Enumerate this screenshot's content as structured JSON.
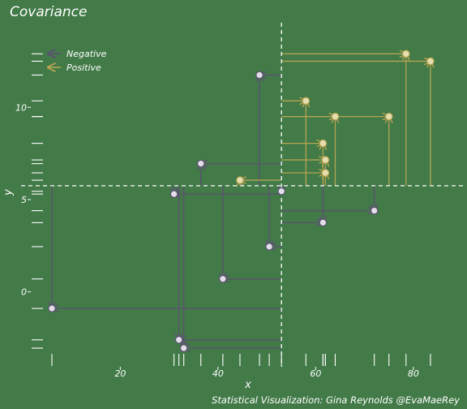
{
  "chart_data": {
    "type": "scatter",
    "title": "Covariance",
    "xlabel": "x",
    "ylabel": "y",
    "caption": "Statistical Visualization: Gina Reynolds @EvaMaeRey",
    "x_ticks": [
      {
        "value": 20,
        "label": "20"
      },
      {
        "value": 40,
        "label": "40"
      },
      {
        "value": 60,
        "label": "60"
      },
      {
        "value": 80,
        "label": "80"
      }
    ],
    "y_ticks": [
      {
        "value": 0,
        "label": "0"
      },
      {
        "value": 5,
        "label": "5"
      },
      {
        "value": 10,
        "label": "10"
      }
    ],
    "xlim": [
      6.0,
      86.0
    ],
    "ylim": [
      -3.05,
      13.75
    ],
    "mean_x": 53.0,
    "mean_y": 5.75,
    "grid": false,
    "legend_position": "top-left",
    "legend": [
      {
        "label": "Negative",
        "color": "#5e4f73"
      },
      {
        "label": "Positive",
        "color": "#b7a552"
      }
    ],
    "colors": {
      "background": "#427a48",
      "negative": "#5e4f73",
      "positive": "#b7a552",
      "mean_line": "#ffffff",
      "rug": "#ffffff"
    },
    "points": [
      {
        "x": 6.0,
        "y": -0.9,
        "sign": "Negative"
      },
      {
        "x": 31.0,
        "y": 5.3,
        "sign": "Negative"
      },
      {
        "x": 32.0,
        "y": -2.6,
        "sign": "Negative"
      },
      {
        "x": 33.0,
        "y": -3.05,
        "sign": "Negative"
      },
      {
        "x": 41.0,
        "y": 0.7,
        "sign": "Negative"
      },
      {
        "x": 50.5,
        "y": 2.45,
        "sign": "Negative"
      },
      {
        "x": 53.0,
        "y": 5.45,
        "sign": "Negative"
      },
      {
        "x": 61.5,
        "y": 3.75,
        "sign": "Negative"
      },
      {
        "x": 72.0,
        "y": 4.4,
        "sign": "Negative"
      },
      {
        "x": 36.5,
        "y": 6.95,
        "sign": "Negative"
      },
      {
        "x": 48.5,
        "y": 11.75,
        "sign": "Negative"
      },
      {
        "x": 44.5,
        "y": 6.05,
        "sign": "Positive"
      },
      {
        "x": 58.0,
        "y": 10.35,
        "sign": "Positive"
      },
      {
        "x": 61.5,
        "y": 8.05,
        "sign": "Positive"
      },
      {
        "x": 62.0,
        "y": 7.15,
        "sign": "Positive"
      },
      {
        "x": 62.0,
        "y": 6.45,
        "sign": "Positive"
      },
      {
        "x": 64.0,
        "y": 9.5,
        "sign": "Positive"
      },
      {
        "x": 75.0,
        "y": 9.5,
        "sign": "Positive"
      },
      {
        "x": 78.5,
        "y": 12.9,
        "sign": "Positive"
      },
      {
        "x": 83.5,
        "y": 12.5,
        "sign": "Positive"
      }
    ],
    "note": "Arrows from each point to the mean lines (x and y directions)."
  }
}
